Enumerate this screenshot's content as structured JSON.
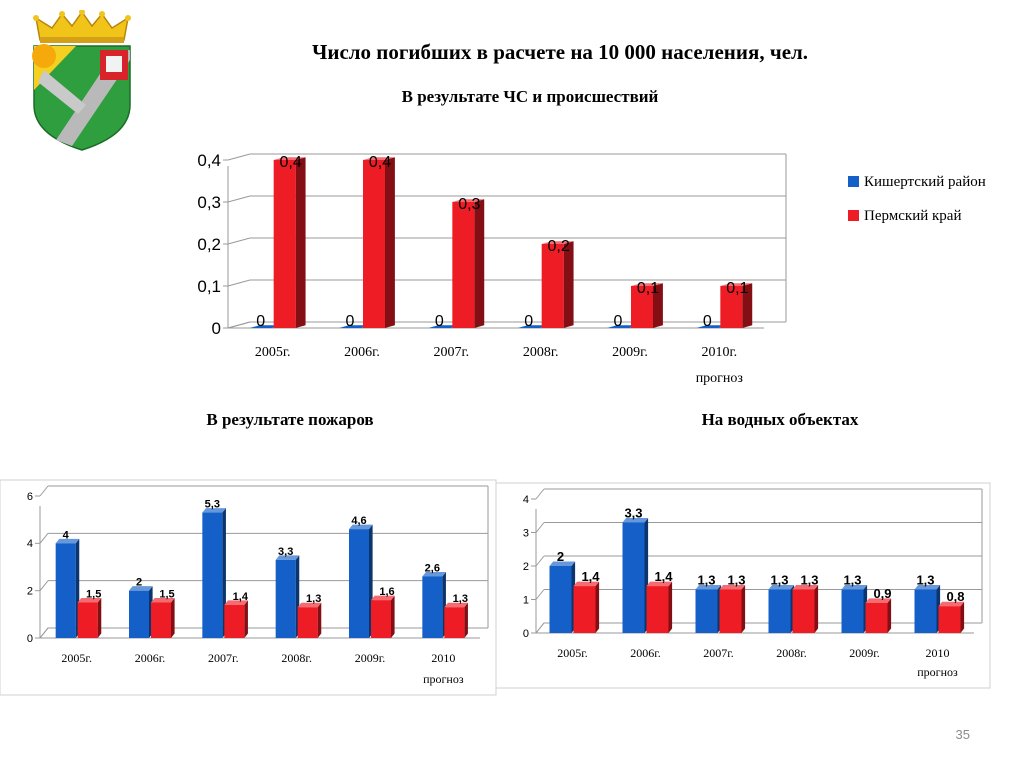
{
  "title": "Число погибших в расчете на 10 000 населения, чел.",
  "slide_number": "35",
  "colors": {
    "blue": "#1560c8",
    "red": "#ee1c24"
  },
  "legend": [
    {
      "label": "Кишертский район",
      "color": "#1560c8"
    },
    {
      "label": "Пермский край",
      "color": "#ee1c24"
    }
  ],
  "chart_data": [
    {
      "type": "bar",
      "subtitle": "В результате ЧС и происшествий",
      "categories": [
        "2005г.",
        "2006г.",
        "2007г.",
        "2008г.",
        "2009г.",
        "2010г. прогноз"
      ],
      "y_ticks": [
        "0",
        "0,1",
        "0,2",
        "0,3",
        "0,4"
      ],
      "ylim": [
        0,
        0.4
      ],
      "series": [
        {
          "name": "Кишертский район",
          "values": [
            0,
            0,
            0,
            0,
            0,
            0
          ],
          "labels": [
            "0",
            "0",
            "0",
            "0",
            "0",
            "0"
          ]
        },
        {
          "name": "Пермский край",
          "values": [
            0.4,
            0.4,
            0.3,
            0.2,
            0.1,
            0.1
          ],
          "labels": [
            "0,4",
            "0,4",
            "0,3",
            "0,2",
            "0,1",
            "0,1"
          ]
        }
      ]
    },
    {
      "type": "bar",
      "subtitle": "В результате пожаров",
      "categories": [
        "2005г.",
        "2006г.",
        "2007г.",
        "2008г.",
        "2009г.",
        "2010 прогноз"
      ],
      "y_ticks": [
        "0",
        "2",
        "4",
        "6"
      ],
      "ylim": [
        0,
        6
      ],
      "series": [
        {
          "name": "Кишертский район",
          "values": [
            4,
            2,
            5.3,
            3.3,
            4.6,
            2.6
          ],
          "labels": [
            "4",
            "2",
            "5,3",
            "3,3",
            "4,6",
            "2,6"
          ]
        },
        {
          "name": "Пермский край",
          "values": [
            1.5,
            1.5,
            1.4,
            1.3,
            1.6,
            1.3
          ],
          "labels": [
            "1,5",
            "1,5",
            "1,4",
            "1,3",
            "1,6",
            "1,3"
          ]
        }
      ]
    },
    {
      "type": "bar",
      "subtitle": "На водных объектах",
      "categories": [
        "2005г.",
        "2006г.",
        "2007г.",
        "2008г.",
        "2009г.",
        "2010 прогноз"
      ],
      "y_ticks": [
        "0",
        "1",
        "2",
        "3",
        "4"
      ],
      "ylim": [
        0,
        4
      ],
      "series": [
        {
          "name": "Кишертский район",
          "values": [
            2,
            3.3,
            1.3,
            1.3,
            1.3,
            1.3
          ],
          "labels": [
            "2",
            "3,3",
            "1,3",
            "1,3",
            "1,3",
            "1,3"
          ]
        },
        {
          "name": "Пермский край",
          "values": [
            1.4,
            1.4,
            1.3,
            1.3,
            0.9,
            0.8
          ],
          "labels": [
            "1,4",
            "1,4",
            "1,3",
            "1,3",
            "0,9",
            "0,8"
          ]
        }
      ]
    }
  ]
}
